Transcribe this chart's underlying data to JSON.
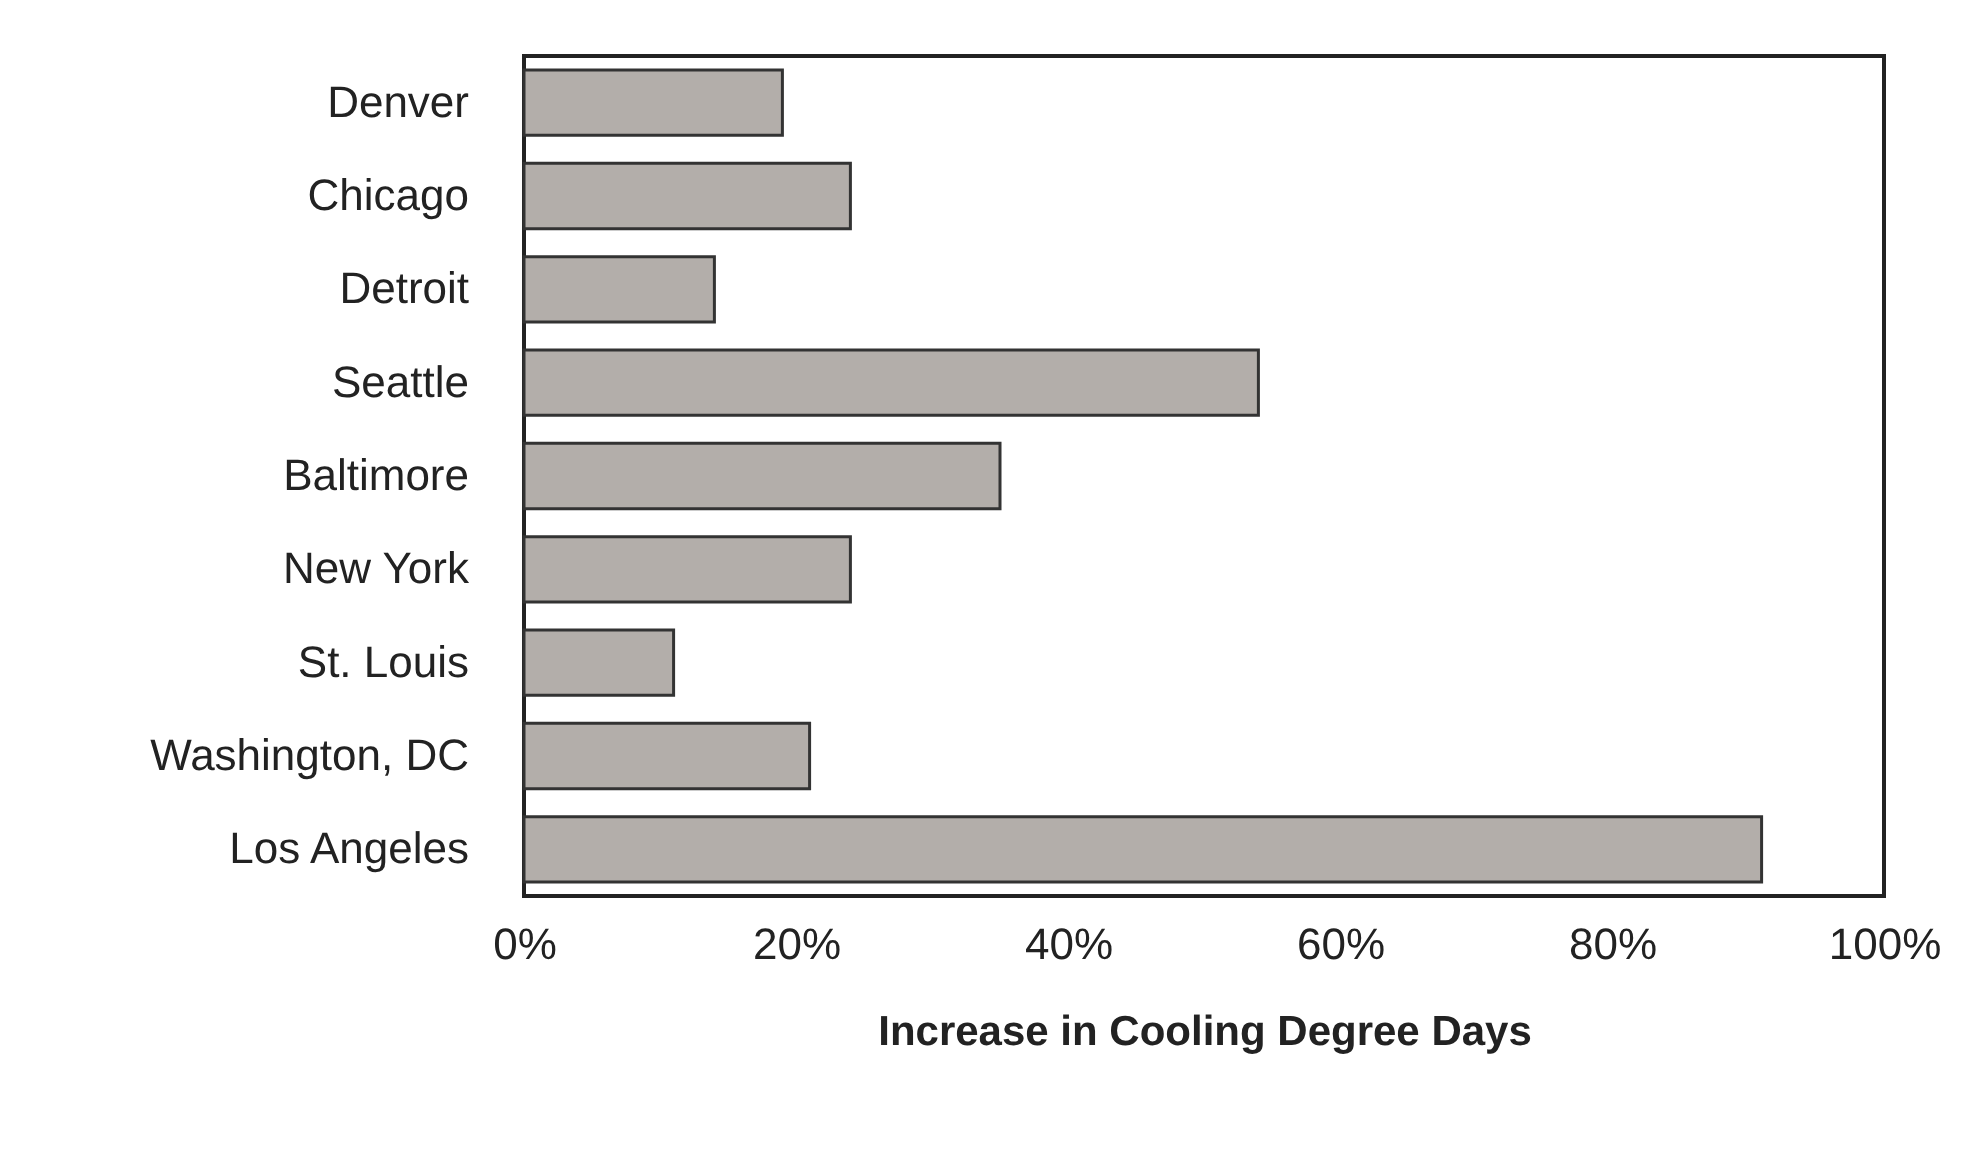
{
  "chart_data": {
    "type": "bar",
    "orientation": "horizontal",
    "xlabel": "Increase in Cooling Degree Days",
    "categories": [
      "Denver",
      "Chicago",
      "Detroit",
      "Seattle",
      "Baltimore",
      "New York",
      "St. Louis",
      "Washington, DC",
      "Los Angeles"
    ],
    "values": [
      19,
      24,
      14,
      54,
      35,
      24,
      11,
      21,
      91
    ],
    "color": "#b3aeaa",
    "xlim": [
      0,
      100
    ],
    "xticks": [
      {
        "value": 0,
        "label": "0%"
      },
      {
        "value": 20,
        "label": "20%"
      },
      {
        "value": 40,
        "label": "40%"
      },
      {
        "value": 60,
        "label": "60%"
      },
      {
        "value": 80,
        "label": "80%"
      },
      {
        "value": 100,
        "label": "100%"
      }
    ],
    "grid": false
  }
}
